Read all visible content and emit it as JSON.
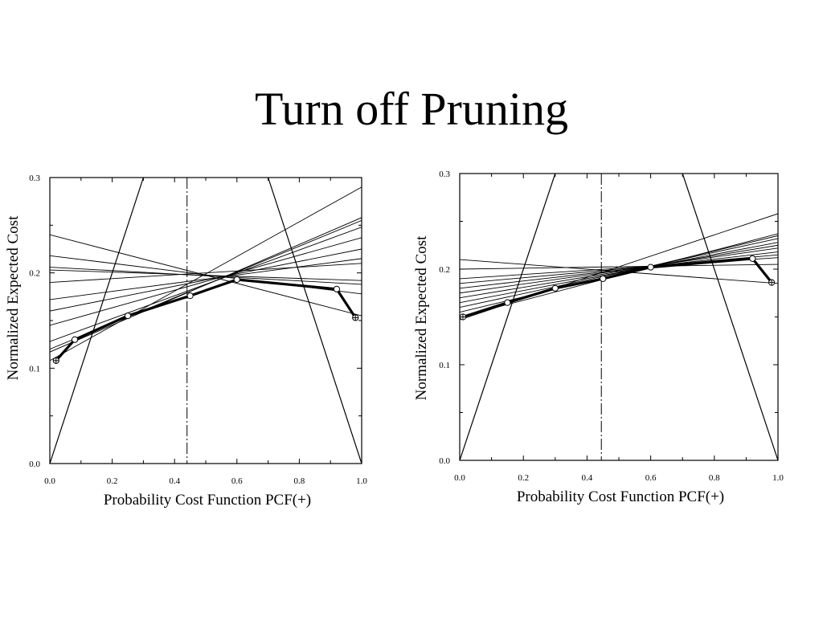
{
  "slide": {
    "title": "Turn off Pruning"
  },
  "colors": {
    "ink": "#000000",
    "background": "#ffffff"
  },
  "chart_data": [
    {
      "type": "line",
      "xlabel": "Probability Cost Function PCF(+)",
      "ylabel": "Normalized Expected Cost",
      "xlim": [
        0,
        1
      ],
      "ylim": [
        0,
        0.3
      ],
      "xticks": [
        0,
        0.2,
        0.4,
        0.6,
        0.8,
        1
      ],
      "xtick_labels": [
        "0.0",
        "0.2",
        "0.4",
        "0.6",
        "0.8",
        "1.0"
      ],
      "yticks": [
        0,
        0.1,
        0.2,
        0.3
      ],
      "ytick_labels": [
        "0.0",
        "0.1",
        "0.2",
        "0.3"
      ],
      "grid": false,
      "vertical_marker": {
        "x": 0.44,
        "style": "dash-dot"
      },
      "trivial_classifiers": [
        {
          "x": [
            0,
            0.3
          ],
          "y": [
            0,
            0.3
          ]
        },
        {
          "x": [
            0.7,
            1
          ],
          "y": [
            0.3,
            0
          ]
        }
      ],
      "cost_lines": [
        {
          "x": [
            0,
            1
          ],
          "y": [
            0.24,
            0.155
          ]
        },
        {
          "x": [
            0,
            1
          ],
          "y": [
            0.218,
            0.178
          ]
        },
        {
          "x": [
            0,
            1
          ],
          "y": [
            0.206,
            0.188
          ]
        },
        {
          "x": [
            0,
            1
          ],
          "y": [
            0.203,
            0.192
          ]
        },
        {
          "x": [
            0,
            1
          ],
          "y": [
            0.19,
            0.21
          ]
        },
        {
          "x": [
            0,
            1
          ],
          "y": [
            0.172,
            0.215
          ]
        },
        {
          "x": [
            0,
            1
          ],
          "y": [
            0.16,
            0.225
          ]
        },
        {
          "x": [
            0,
            1
          ],
          "y": [
            0.145,
            0.237
          ]
        },
        {
          "x": [
            0,
            1
          ],
          "y": [
            0.128,
            0.248
          ]
        },
        {
          "x": [
            0,
            1
          ],
          "y": [
            0.12,
            0.255
          ]
        },
        {
          "x": [
            0,
            1
          ],
          "y": [
            0.117,
            0.258
          ]
        },
        {
          "x": [
            0,
            1
          ],
          "y": [
            0.108,
            0.29
          ]
        }
      ],
      "lower_envelope": {
        "x": [
          0.02,
          0.08,
          0.25,
          0.45,
          0.6,
          0.92,
          0.98
        ],
        "y": [
          0.108,
          0.13,
          0.155,
          0.176,
          0.193,
          0.183,
          0.153
        ]
      }
    },
    {
      "type": "line",
      "xlabel": "Probability Cost Function PCF(+)",
      "ylabel": "Normalized Expected Cost",
      "xlim": [
        0,
        1
      ],
      "ylim": [
        0,
        0.3
      ],
      "xticks": [
        0,
        0.2,
        0.4,
        0.6,
        0.8,
        1
      ],
      "xtick_labels": [
        "0.0",
        "0.2",
        "0.4",
        "0.6",
        "0.8",
        "1.0"
      ],
      "yticks": [
        0,
        0.1,
        0.2,
        0.3
      ],
      "ytick_labels": [
        "0.0",
        "0.1",
        "0.2",
        "0.3"
      ],
      "grid": false,
      "vertical_marker": {
        "x": 0.445,
        "style": "dash-dot"
      },
      "trivial_classifiers": [
        {
          "x": [
            0,
            0.3
          ],
          "y": [
            0,
            0.3
          ]
        },
        {
          "x": [
            0.7,
            1
          ],
          "y": [
            0.3,
            0
          ]
        }
      ],
      "cost_lines": [
        {
          "x": [
            0,
            1
          ],
          "y": [
            0.21,
            0.185
          ]
        },
        {
          "x": [
            0,
            1
          ],
          "y": [
            0.2,
            0.205
          ]
        },
        {
          "x": [
            0,
            1
          ],
          "y": [
            0.19,
            0.212
          ]
        },
        {
          "x": [
            0,
            1
          ],
          "y": [
            0.185,
            0.215
          ]
        },
        {
          "x": [
            0,
            1
          ],
          "y": [
            0.18,
            0.218
          ]
        },
        {
          "x": [
            0,
            1
          ],
          "y": [
            0.175,
            0.222
          ]
        },
        {
          "x": [
            0,
            1
          ],
          "y": [
            0.17,
            0.225
          ]
        },
        {
          "x": [
            0,
            1
          ],
          "y": [
            0.165,
            0.228
          ]
        },
        {
          "x": [
            0,
            1
          ],
          "y": [
            0.16,
            0.232
          ]
        },
        {
          "x": [
            0,
            1
          ],
          "y": [
            0.155,
            0.235
          ]
        },
        {
          "x": [
            0,
            1
          ],
          "y": [
            0.15,
            0.237
          ]
        },
        {
          "x": [
            0,
            1
          ],
          "y": [
            0.147,
            0.258
          ]
        }
      ],
      "lower_envelope": {
        "x": [
          0.01,
          0.15,
          0.3,
          0.45,
          0.6,
          0.92,
          0.98
        ],
        "y": [
          0.15,
          0.165,
          0.18,
          0.19,
          0.202,
          0.211,
          0.186
        ]
      }
    }
  ]
}
